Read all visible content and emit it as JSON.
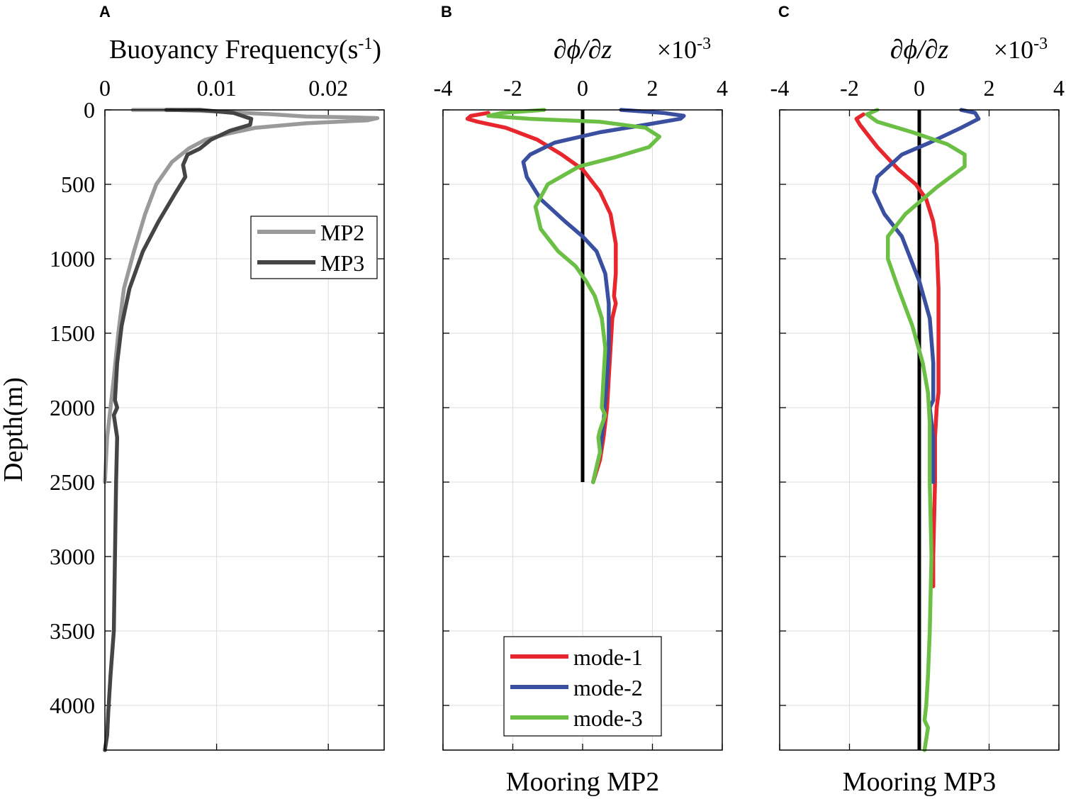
{
  "colors": {
    "mp2": "#9a9a9a",
    "mp3": "#454545",
    "mode1": "#e8262d",
    "mode2": "#3a4fa0",
    "mode3": "#6cbf45",
    "zero_line": "#000000",
    "grid": "#dddddd"
  },
  "chart_data": [
    {
      "panel": "A",
      "type": "line",
      "title": "Buoyancy Frequency(s",
      "title_sup": "-1",
      "title_close": ")",
      "xlabel": "",
      "ylabel": "Depth(m)",
      "xlim": [
        0,
        0.025
      ],
      "ylim": [
        4300,
        0
      ],
      "xticks": [
        0,
        0.01,
        0.02
      ],
      "xtick_labels": [
        "0",
        "0.01",
        "0.02"
      ],
      "yticks": [
        0,
        500,
        1000,
        1500,
        2000,
        2500,
        3000,
        3500,
        4000
      ],
      "ytick_labels": [
        "0",
        "500",
        "1000",
        "1500",
        "2000",
        "2500",
        "3000",
        "3500",
        "4000"
      ],
      "grid": true,
      "legend_position": "upper-right",
      "series": [
        {
          "name": "MP2",
          "x": [
            0.0025,
            0.006,
            0.01,
            0.015,
            0.018,
            0.022,
            0.0244,
            0.0235,
            0.018,
            0.0135,
            0.011,
            0.009,
            0.0075,
            0.006,
            0.0046,
            0.0036,
            0.0026,
            0.0017,
            0.0012,
            0.0008,
            0.0005,
            0.0002,
            0.0001,
            0.0
          ],
          "y": [
            0,
            0,
            10,
            30,
            45,
            50,
            55,
            70,
            90,
            120,
            160,
            200,
            260,
            350,
            500,
            700,
            950,
            1200,
            1500,
            1800,
            2000,
            2200,
            2350,
            2500
          ]
        },
        {
          "name": "MP3",
          "x": [
            0.0055,
            0.0085,
            0.0115,
            0.0131,
            0.013,
            0.0112,
            0.0095,
            0.0085,
            0.0074,
            0.007,
            0.0072,
            0.0063,
            0.0048,
            0.0034,
            0.0022,
            0.0015,
            0.0011,
            0.0009,
            0.0011,
            0.0008,
            0.0011,
            0.001,
            0.0009,
            0.0008,
            0.0005,
            0.0003,
            0.0002,
            0.0
          ],
          "y": [
            0,
            0,
            20,
            60,
            100,
            140,
            200,
            260,
            300,
            370,
            450,
            560,
            750,
            950,
            1200,
            1450,
            1700,
            1950,
            2000,
            2050,
            2200,
            2500,
            3000,
            3500,
            3800,
            4050,
            4200,
            4300
          ]
        }
      ]
    },
    {
      "panel": "B",
      "type": "line",
      "title": "Mooring MP2",
      "axis_title": "∂ϕ/∂z",
      "exponent_base": "×10",
      "exponent": "-3",
      "xlim": [
        -4,
        4
      ],
      "ylim": [
        4300,
        0
      ],
      "xticks": [
        -4,
        -2,
        0,
        2,
        4
      ],
      "xtick_labels": [
        "-4",
        "-2",
        "0",
        "2",
        "4"
      ],
      "yticks": [
        0,
        500,
        1000,
        1500,
        2000,
        2500,
        3000,
        3500,
        4000
      ],
      "grid": true,
      "legend_position": "bottom-center",
      "zero_line": {
        "x": 0,
        "y_from": 0,
        "y_to": 2500
      },
      "series": [
        {
          "name": "mode-1",
          "x": [
            -2.7,
            -3.2,
            -3.3,
            -3.0,
            -2.2,
            -1.3,
            -0.6,
            0.0,
            0.5,
            0.8,
            0.95,
            0.95,
            0.9,
            0.95,
            0.85,
            0.8,
            0.75,
            0.7,
            0.6,
            0.5,
            0.3
          ],
          "y": [
            20,
            40,
            60,
            80,
            120,
            200,
            300,
            400,
            550,
            700,
            900,
            1100,
            1250,
            1300,
            1400,
            1600,
            1800,
            2000,
            2200,
            2350,
            2500
          ]
        },
        {
          "name": "mode-2",
          "x": [
            1.1,
            2.3,
            2.9,
            2.8,
            1.8,
            0.5,
            -0.8,
            -1.5,
            -1.7,
            -1.6,
            -1.2,
            -0.5,
            0.0,
            0.4,
            0.65,
            0.75,
            0.75,
            0.7,
            0.6,
            0.5,
            0.3
          ],
          "y": [
            0,
            20,
            40,
            60,
            100,
            150,
            220,
            300,
            350,
            450,
            600,
            750,
            850,
            950,
            1100,
            1300,
            1600,
            1800,
            2100,
            2300,
            2500
          ]
        },
        {
          "name": "mode-3",
          "x": [
            -1.1,
            -2.3,
            -2.7,
            -1.5,
            0.5,
            1.8,
            2.2,
            1.9,
            0.9,
            -0.1,
            -1.0,
            -1.35,
            -1.2,
            -0.7,
            -0.2,
            0.1,
            0.35,
            0.55,
            0.65,
            0.6,
            0.55,
            0.65,
            0.5,
            0.45,
            0.5,
            0.4,
            0.3
          ],
          "y": [
            0,
            20,
            40,
            60,
            80,
            120,
            180,
            250,
            320,
            380,
            500,
            650,
            800,
            950,
            1050,
            1150,
            1250,
            1400,
            1600,
            1800,
            2000,
            2050,
            2150,
            2200,
            2300,
            2400,
            2500
          ]
        }
      ]
    },
    {
      "panel": "C",
      "type": "line",
      "title": "Mooring MP3",
      "axis_title": "∂ϕ/∂z",
      "exponent_base": "×10",
      "exponent": "-3",
      "xlim": [
        -4,
        4
      ],
      "ylim": [
        4300,
        0
      ],
      "xticks": [
        -4,
        -2,
        0,
        2,
        4
      ],
      "xtick_labels": [
        "-4",
        "-2",
        "0",
        "2",
        "4"
      ],
      "yticks": [
        0,
        500,
        1000,
        1500,
        2000,
        2500,
        3000,
        3500,
        4000
      ],
      "grid": true,
      "zero_line": {
        "x": 0,
        "y_from": 0,
        "y_to": 4300
      },
      "series": [
        {
          "name": "mode-1",
          "x": [
            -1.6,
            -1.8,
            -1.7,
            -1.2,
            -0.6,
            -0.1,
            0.2,
            0.4,
            0.5,
            0.55,
            0.55,
            0.55,
            0.55,
            0.5,
            0.45,
            0.45,
            0.4,
            0.4
          ],
          "y": [
            30,
            60,
            100,
            250,
            400,
            500,
            600,
            750,
            900,
            1200,
            1500,
            1800,
            1900,
            2000,
            2200,
            2500,
            3000,
            3200
          ]
        },
        {
          "name": "mode-2",
          "x": [
            1.2,
            1.6,
            1.7,
            1.2,
            0.3,
            -0.5,
            -1.2,
            -1.3,
            -1.0,
            -0.5,
            0.0,
            0.3,
            0.4,
            0.4,
            0.3,
            0.4,
            0.4
          ],
          "y": [
            0,
            20,
            60,
            120,
            220,
            300,
            450,
            550,
            700,
            850,
            1150,
            1400,
            1700,
            1950,
            2000,
            2200,
            2500
          ]
        },
        {
          "name": "mode-3",
          "x": [
            -1.2,
            -1.5,
            -1.2,
            -0.2,
            0.8,
            1.3,
            1.3,
            0.5,
            -0.4,
            -0.9,
            -0.9,
            -0.6,
            -0.2,
            0.1,
            0.25,
            0.3,
            0.3,
            0.35,
            0.3,
            0.25,
            0.2,
            0.15,
            0.25,
            0.15
          ],
          "y": [
            0,
            30,
            80,
            150,
            230,
            300,
            380,
            520,
            700,
            850,
            1000,
            1200,
            1450,
            1700,
            1900,
            2100,
            2500,
            3000,
            3500,
            3800,
            4000,
            4100,
            4150,
            4300
          ]
        }
      ]
    }
  ]
}
